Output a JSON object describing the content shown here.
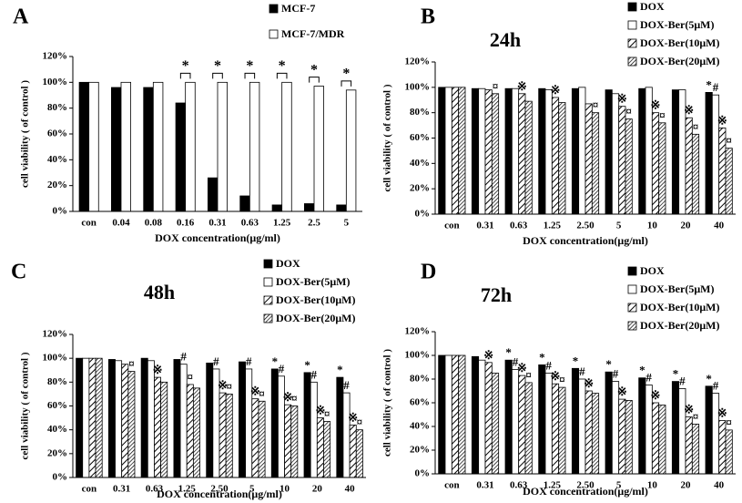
{
  "chart_data": [
    {
      "type": "bar",
      "panel_label": "A",
      "x_label": "DOX concentration(μg/ml)",
      "y_label": "cell viability ( of control )",
      "categories": [
        "con",
        "0.04",
        "0.08",
        "0.16",
        "0.31",
        "0.63",
        "1.25",
        "2.5",
        "5"
      ],
      "series": [
        {
          "name": "MCF-7",
          "color": "#000000",
          "pattern": "solid",
          "values": [
            100,
            96,
            96,
            84,
            26,
            12,
            5,
            6,
            5
          ]
        },
        {
          "name": "MCF-7/MDR",
          "color": "#000000",
          "pattern": "none",
          "values": [
            100,
            100,
            100,
            100,
            100,
            100,
            100,
            97,
            94
          ]
        }
      ],
      "ylim": [
        0,
        120
      ],
      "yticks": [
        {
          "value": 0,
          "label": "0%"
        },
        {
          "value": 20,
          "label": "20%"
        },
        {
          "value": 40,
          "label": "40%"
        },
        {
          "value": 60,
          "label": "60%"
        },
        {
          "value": 80,
          "label": "80%"
        },
        {
          "value": 100,
          "label": "100%"
        },
        {
          "value": 120,
          "label": "120%"
        }
      ],
      "annotations": [
        {
          "text": "*",
          "category": "0.16"
        },
        {
          "text": "*",
          "category": "0.31"
        },
        {
          "text": "*",
          "category": "0.63"
        },
        {
          "text": "*",
          "category": "1.25"
        },
        {
          "text": "*",
          "category": "2.5"
        },
        {
          "text": "*",
          "category": "5"
        }
      ]
    },
    {
      "type": "bar",
      "panel_label": "B",
      "title": "24h",
      "x_label": "DOX concentration(μg/ml)",
      "y_label": "cell viability ( of control )",
      "categories": [
        "con",
        "0.31",
        "0.63",
        "1.25",
        "2.50",
        "5",
        "10",
        "20",
        "40"
      ],
      "series": [
        {
          "name": "DOX",
          "color": "#000000",
          "pattern": "solid",
          "values": [
            100,
            99,
            99,
            99,
            99,
            98,
            99,
            98,
            96
          ]
        },
        {
          "name": "DOX-Ber(5μM)",
          "color": "#000000",
          "pattern": "none",
          "values": [
            100,
            99,
            99,
            98,
            100,
            95,
            100,
            98,
            94
          ]
        },
        {
          "name": "DOX-Ber(10μM)",
          "color": "#000000",
          "pattern": "hatch",
          "values": [
            100,
            98,
            95,
            92,
            87,
            85,
            80,
            76,
            68
          ]
        },
        {
          "name": "DOX-Ber(20μM)",
          "color": "#000000",
          "pattern": "hatch-dense",
          "values": [
            100,
            95,
            89,
            88,
            80,
            75,
            72,
            63,
            52
          ]
        }
      ],
      "ylim": [
        0,
        120
      ],
      "yticks": [
        {
          "value": 0,
          "label": "0%"
        },
        {
          "value": 20,
          "label": "20%"
        },
        {
          "value": 40,
          "label": "40%"
        },
        {
          "value": 60,
          "label": "60%"
        },
        {
          "value": 80,
          "label": "80%"
        },
        {
          "value": 100,
          "label": "100%"
        },
        {
          "value": 120,
          "label": "120%"
        }
      ],
      "annotations": [
        {
          "text": "¤",
          "category": "0.31",
          "series": "DOX-Ber(20μM)"
        },
        {
          "text": "※",
          "category": "0.63",
          "series": "DOX-Ber(10μM)"
        },
        {
          "text": "※",
          "category": "1.25",
          "series": "DOX-Ber(10μM)"
        },
        {
          "text": "¤",
          "category": "2.50",
          "series": "DOX-Ber(20μM)"
        },
        {
          "text": "※",
          "category": "5",
          "series": "DOX-Ber(10μM)"
        },
        {
          "text": "¤",
          "category": "5",
          "series": "DOX-Ber(20μM)"
        },
        {
          "text": "※",
          "category": "10",
          "series": "DOX-Ber(10μM)"
        },
        {
          "text": "¤",
          "category": "10",
          "series": "DOX-Ber(20μM)"
        },
        {
          "text": "※",
          "category": "20",
          "series": "DOX-Ber(10μM)"
        },
        {
          "text": "¤",
          "category": "20",
          "series": "DOX-Ber(20μM)"
        },
        {
          "text": "*",
          "category": "40",
          "series": "DOX"
        },
        {
          "text": "#",
          "category": "40",
          "series": "DOX-Ber(5μM)"
        },
        {
          "text": "※",
          "category": "40",
          "series": "DOX-Ber(10μM)"
        },
        {
          "text": "¤",
          "category": "40",
          "series": "DOX-Ber(20μM)"
        }
      ]
    },
    {
      "type": "bar",
      "panel_label": "C",
      "title": "48h",
      "x_label": "DOX concentration(μg/ml)",
      "y_label": "cell viability ( of control )",
      "categories": [
        "con",
        "0.31",
        "0.63",
        "1.25",
        "2.50",
        "5",
        "10",
        "20",
        "40"
      ],
      "series": [
        {
          "name": "DOX",
          "color": "#000000",
          "pattern": "solid",
          "values": [
            100,
            99,
            100,
            99,
            96,
            97,
            91,
            88,
            84
          ]
        },
        {
          "name": "DOX-Ber(5μM)",
          "color": "#000000",
          "pattern": "none",
          "values": [
            100,
            98,
            98,
            95,
            91,
            91,
            85,
            80,
            71
          ]
        },
        {
          "name": "DOX-Ber(10μM)",
          "color": "#000000",
          "pattern": "hatch",
          "values": [
            100,
            95,
            84,
            78,
            71,
            66,
            61,
            50,
            44
          ]
        },
        {
          "name": "DOX-Ber(20μM)",
          "color": "#000000",
          "pattern": "hatch-dense",
          "values": [
            100,
            89,
            80,
            75,
            70,
            64,
            60,
            47,
            40
          ]
        }
      ],
      "ylim": [
        0,
        120
      ],
      "yticks": [
        {
          "value": 0,
          "label": "0%"
        },
        {
          "value": 20,
          "label": "20%"
        },
        {
          "value": 40,
          "label": "40%"
        },
        {
          "value": 60,
          "label": "60%"
        },
        {
          "value": 80,
          "label": "80%"
        },
        {
          "value": 100,
          "label": "100%"
        },
        {
          "value": 120,
          "label": "120%"
        }
      ],
      "annotations": [
        {
          "text": "¤",
          "category": "0.31",
          "series": "DOX-Ber(20μM)"
        },
        {
          "text": "※",
          "category": "0.63",
          "series": "DOX-Ber(10μM)"
        },
        {
          "text": "#",
          "category": "1.25",
          "series": "DOX-Ber(5μM)"
        },
        {
          "text": "¤",
          "category": "1.25",
          "series": "DOX-Ber(10μM)"
        },
        {
          "text": "#",
          "category": "2.50",
          "series": "DOX-Ber(5μM)"
        },
        {
          "text": "※",
          "category": "2.50",
          "series": "DOX-Ber(10μM)"
        },
        {
          "text": "¤",
          "category": "2.50",
          "series": "DOX-Ber(20μM)"
        },
        {
          "text": "#",
          "category": "5",
          "series": "DOX-Ber(5μM)"
        },
        {
          "text": "※",
          "category": "5",
          "series": "DOX-Ber(10μM)"
        },
        {
          "text": "¤",
          "category": "5",
          "series": "DOX-Ber(20μM)"
        },
        {
          "text": "*",
          "category": "10",
          "series": "DOX"
        },
        {
          "text": "#",
          "category": "10",
          "series": "DOX-Ber(5μM)"
        },
        {
          "text": "※",
          "category": "10",
          "series": "DOX-Ber(10μM)"
        },
        {
          "text": "¤",
          "category": "10",
          "series": "DOX-Ber(20μM)"
        },
        {
          "text": "*",
          "category": "20",
          "series": "DOX"
        },
        {
          "text": "#",
          "category": "20",
          "series": "DOX-Ber(5μM)"
        },
        {
          "text": "※",
          "category": "20",
          "series": "DOX-Ber(10μM)"
        },
        {
          "text": "¤",
          "category": "20",
          "series": "DOX-Ber(20μM)"
        },
        {
          "text": "*",
          "category": "40",
          "series": "DOX"
        },
        {
          "text": "#",
          "category": "40",
          "series": "DOX-Ber(5μM)"
        },
        {
          "text": "※",
          "category": "40",
          "series": "DOX-Ber(10μM)"
        },
        {
          "text": "¤",
          "category": "40",
          "series": "DOX-Ber(20μM)"
        }
      ]
    },
    {
      "type": "bar",
      "panel_label": "D",
      "title": "72h",
      "x_label": "DOX concentration(μg/ml)",
      "y_label": "cell viability ( of control )",
      "categories": [
        "con",
        "0.31",
        "0.63",
        "1.25",
        "2.50",
        "5",
        "10",
        "20",
        "40"
      ],
      "series": [
        {
          "name": "DOX",
          "color": "#000000",
          "pattern": "solid",
          "values": [
            100,
            99,
            96,
            92,
            89,
            86,
            81,
            78,
            74
          ]
        },
        {
          "name": "DOX-Ber(5μM)",
          "color": "#000000",
          "pattern": "none",
          "values": [
            100,
            96,
            88,
            85,
            80,
            78,
            75,
            72,
            68
          ]
        },
        {
          "name": "DOX-Ber(10μM)",
          "color": "#000000",
          "pattern": "hatch",
          "values": [
            100,
            94,
            83,
            76,
            70,
            63,
            60,
            48,
            45
          ]
        },
        {
          "name": "DOX-Ber(20μM)",
          "color": "#000000",
          "pattern": "hatch-dense",
          "values": [
            100,
            85,
            77,
            73,
            68,
            62,
            58,
            42,
            37
          ]
        }
      ],
      "ylim": [
        0,
        120
      ],
      "yticks": [
        {
          "value": 0,
          "label": "0%"
        },
        {
          "value": 20,
          "label": "20%"
        },
        {
          "value": 40,
          "label": "40%"
        },
        {
          "value": 60,
          "label": "60%"
        },
        {
          "value": 80,
          "label": "80%"
        },
        {
          "value": 100,
          "label": "100%"
        },
        {
          "value": 120,
          "label": "120%"
        }
      ],
      "annotations": [
        {
          "text": "※",
          "category": "0.31",
          "series": "DOX-Ber(10μM)"
        },
        {
          "text": "*",
          "category": "0.63",
          "series": "DOX"
        },
        {
          "text": "#",
          "category": "0.63",
          "series": "DOX-Ber(5μM)"
        },
        {
          "text": "※",
          "category": "0.63",
          "series": "DOX-Ber(10μM)"
        },
        {
          "text": "¤",
          "category": "0.63",
          "series": "DOX-Ber(20μM)"
        },
        {
          "text": "*",
          "category": "1.25",
          "series": "DOX"
        },
        {
          "text": "#",
          "category": "1.25",
          "series": "DOX-Ber(5μM)"
        },
        {
          "text": "※",
          "category": "1.25",
          "series": "DOX-Ber(10μM)"
        },
        {
          "text": "¤",
          "category": "1.25",
          "series": "DOX-Ber(20μM)"
        },
        {
          "text": "*",
          "category": "2.50",
          "series": "DOX"
        },
        {
          "text": "#",
          "category": "2.50",
          "series": "DOX-Ber(5μM)"
        },
        {
          "text": "※",
          "category": "2.50",
          "series": "DOX-Ber(10μM)"
        },
        {
          "text": "*",
          "category": "5",
          "series": "DOX"
        },
        {
          "text": "#",
          "category": "5",
          "series": "DOX-Ber(5μM)"
        },
        {
          "text": "※",
          "category": "5",
          "series": "DOX-Ber(10μM)"
        },
        {
          "text": "*",
          "category": "10",
          "series": "DOX"
        },
        {
          "text": "#",
          "category": "10",
          "series": "DOX-Ber(5μM)"
        },
        {
          "text": "※",
          "category": "10",
          "series": "DOX-Ber(10μM)"
        },
        {
          "text": "*",
          "category": "20",
          "series": "DOX"
        },
        {
          "text": "#",
          "category": "20",
          "series": "DOX-Ber(5μM)"
        },
        {
          "text": "※",
          "category": "20",
          "series": "DOX-Ber(10μM)"
        },
        {
          "text": "¤",
          "category": "20",
          "series": "DOX-Ber(20μM)"
        },
        {
          "text": "*",
          "category": "40",
          "series": "DOX"
        },
        {
          "text": "#",
          "category": "40",
          "series": "DOX-Ber(5μM)"
        },
        {
          "text": "※",
          "category": "40",
          "series": "DOX-Ber(10μM)"
        },
        {
          "text": "¤",
          "category": "40",
          "series": "DOX-Ber(20μM)"
        }
      ]
    }
  ]
}
